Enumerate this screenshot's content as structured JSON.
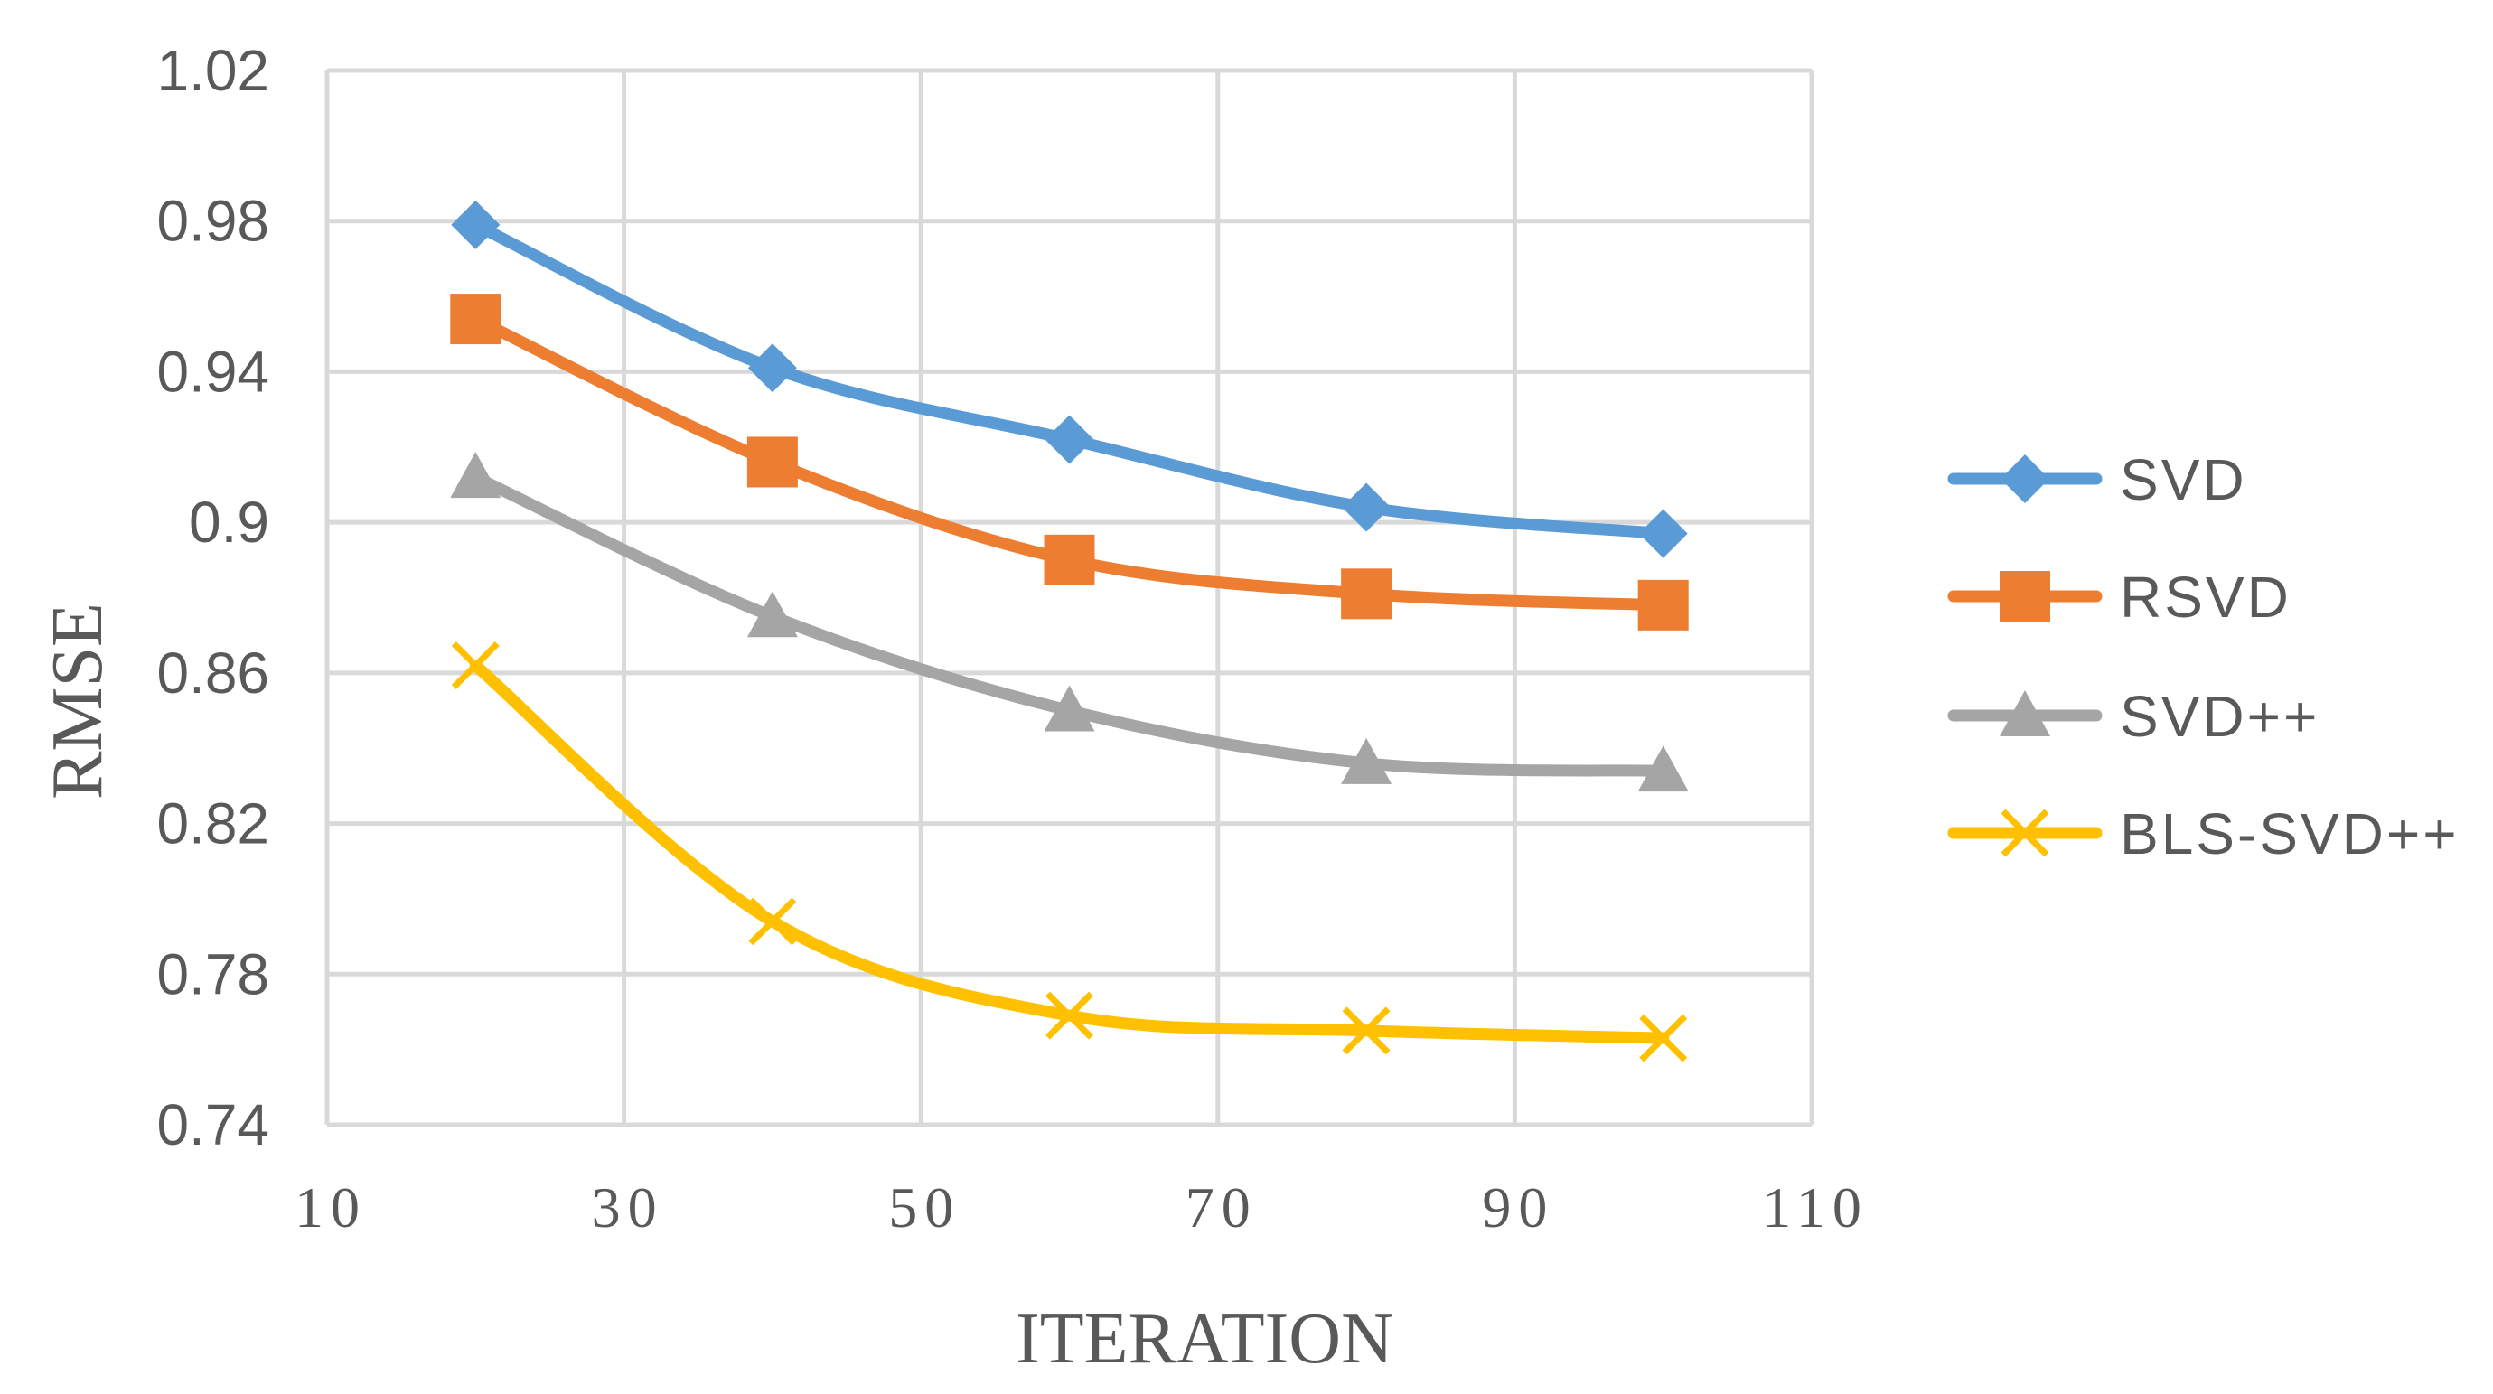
{
  "chart_data": {
    "type": "line",
    "title": "",
    "xlabel": "ITERATION",
    "ylabel": "RMSE",
    "xlim": [
      10,
      110
    ],
    "ylim": [
      0.74,
      1.02
    ],
    "xticks": [
      "10",
      "30",
      "50",
      "70",
      "90",
      "110"
    ],
    "yticks": [
      "0.74",
      "0.78",
      "0.82",
      "0.86",
      "0.9",
      "0.94",
      "0.98",
      "1.02"
    ],
    "grid": true,
    "legend_position": "right",
    "x": [
      20,
      40,
      60,
      80,
      100
    ],
    "series": [
      {
        "name": "SVD",
        "color": "#5B9BD5",
        "marker": "diamond",
        "values": [
          0.979,
          0.941,
          0.922,
          0.904,
          0.897
        ]
      },
      {
        "name": "RSVD",
        "color": "#ED7D31",
        "marker": "square",
        "values": [
          0.954,
          0.916,
          0.89,
          0.881,
          0.878
        ]
      },
      {
        "name": "SVD++",
        "color": "#A5A5A5",
        "marker": "triangle",
        "values": [
          0.912,
          0.875,
          0.85,
          0.836,
          0.834
        ]
      },
      {
        "name": "BLS-SVD++",
        "color": "#FFC000",
        "marker": "x",
        "values": [
          0.862,
          0.794,
          0.769,
          0.765,
          0.763
        ]
      }
    ]
  }
}
